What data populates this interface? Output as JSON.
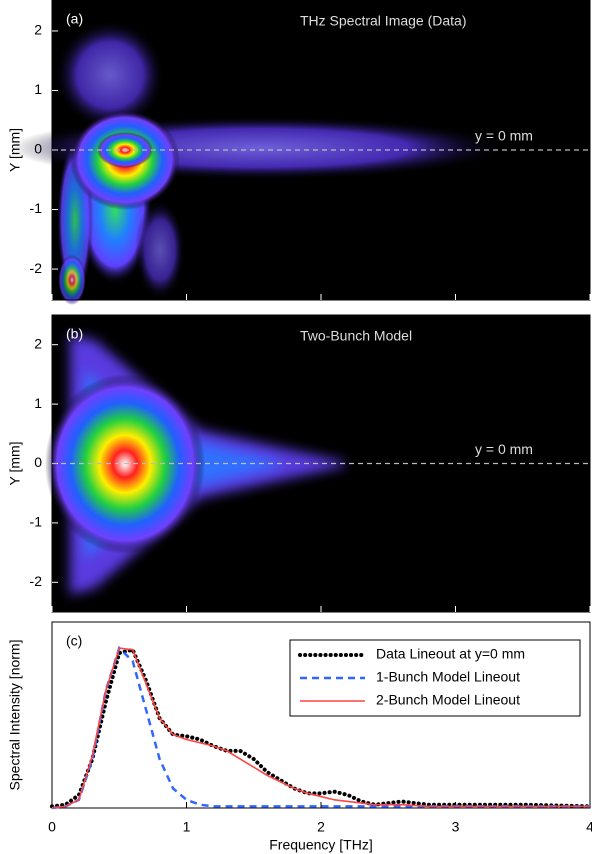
{
  "chart_data": [
    {
      "type": "heatmap",
      "panel_label": "(a)",
      "title": "THz Spectral Image (Data)",
      "y_label": "Y [mm]",
      "xlim": [
        0,
        4
      ],
      "xticks": [
        0,
        1,
        2,
        3,
        4
      ],
      "ylim": [
        -2.52,
        2.52
      ],
      "yticks": [
        -2,
        -1,
        0,
        1,
        2
      ],
      "hline": 0,
      "hline_label": "y = 0 mm"
    },
    {
      "type": "heatmap",
      "panel_label": "(b)",
      "title": "Two-Bunch Model",
      "y_label": "Y [mm]",
      "xlim": [
        0,
        4
      ],
      "xticks": [
        0,
        1,
        2,
        3,
        4
      ],
      "ylim": [
        -2.5,
        2.5
      ],
      "yticks": [
        -2,
        -1,
        0,
        1,
        2
      ],
      "hline": 0,
      "hline_label": "y = 0 mm"
    },
    {
      "type": "line",
      "panel_label": "(c)",
      "x_label": "Frequency [THz]",
      "y_label": "Spectral Intensity [norm]",
      "xlim": [
        0,
        4
      ],
      "xticks": [
        0,
        1,
        2,
        3,
        4
      ],
      "ylim": [
        0,
        1.14
      ],
      "legend": "upper right",
      "x": [
        0,
        0.1,
        0.2,
        0.3,
        0.4,
        0.5,
        0.6,
        0.7,
        0.8,
        0.9,
        1.0,
        1.1,
        1.2,
        1.3,
        1.4,
        1.5,
        1.6,
        1.7,
        1.8,
        1.9,
        2.0,
        2.1,
        2.2,
        2.3,
        2.4,
        2.5,
        2.6,
        2.8,
        3.0,
        3.5,
        4.0
      ],
      "series": [
        {
          "name": "Data Lineout at y=0 mm",
          "color": "#000000",
          "style": "dotted",
          "values": [
            0.01,
            0.02,
            0.08,
            0.3,
            0.65,
            0.95,
            0.97,
            0.78,
            0.55,
            0.45,
            0.44,
            0.42,
            0.38,
            0.35,
            0.35,
            0.3,
            0.22,
            0.17,
            0.12,
            0.09,
            0.09,
            0.1,
            0.08,
            0.04,
            0.02,
            0.03,
            0.04,
            0.02,
            0.02,
            0.02,
            0.01
          ]
        },
        {
          "name": "1-Bunch Model Lineout",
          "color": "#3366ff",
          "style": "dashed",
          "values": [
            0,
            0.01,
            0.05,
            0.3,
            0.72,
            0.98,
            0.9,
            0.6,
            0.3,
            0.12,
            0.05,
            0.02,
            0.01,
            0.01,
            0.01,
            0.01,
            0.01,
            0.01,
            0.01,
            0.01,
            0.01,
            0.01,
            0.01,
            0.01,
            0.01,
            0.01,
            0.01,
            0.01,
            0.01,
            0.01,
            0.01
          ]
        },
        {
          "name": "2-Bunch Model Lineout",
          "color": "#ff4444",
          "style": "solid",
          "values": [
            0,
            0.01,
            0.05,
            0.32,
            0.72,
            0.98,
            0.97,
            0.76,
            0.55,
            0.45,
            0.42,
            0.4,
            0.38,
            0.35,
            0.3,
            0.25,
            0.2,
            0.16,
            0.12,
            0.09,
            0.07,
            0.05,
            0.04,
            0.03,
            0.02,
            0.02,
            0.02,
            0.01,
            0.01,
            0.01,
            0.01
          ]
        }
      ]
    }
  ]
}
